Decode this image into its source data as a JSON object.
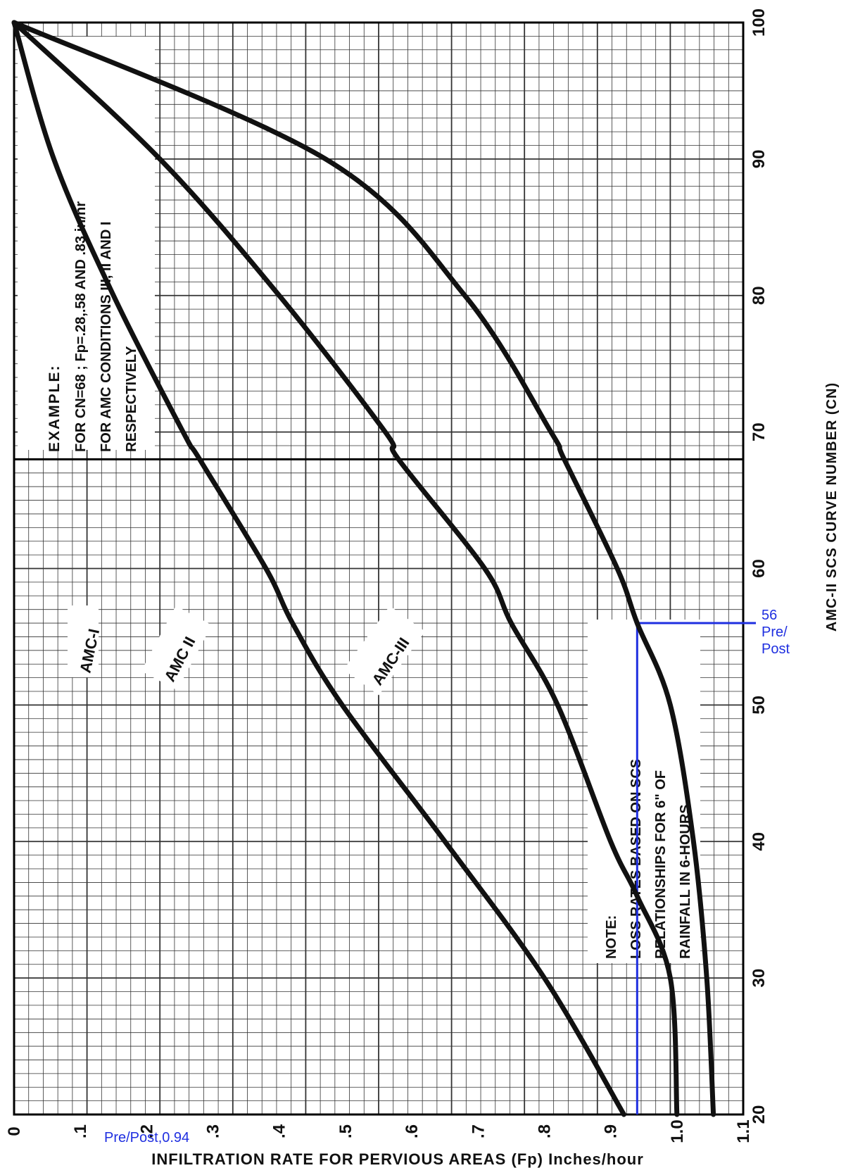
{
  "chart_data": {
    "type": "line",
    "title": "",
    "xlabel": "AMC-II SCS CURVE NUMBER (CN)",
    "ylabel": "INFILTRATION RATE FOR PERVIOUS AREAS (Fp) Inches/hour",
    "xlim": [
      20,
      100
    ],
    "ylim": [
      0,
      1.1
    ],
    "x_ticks": [
      20,
      30,
      40,
      50,
      60,
      70,
      80,
      90,
      100
    ],
    "x_tick_labels": [
      "20",
      "30",
      "40",
      "50",
      "60",
      "70",
      "80",
      "90",
      "100"
    ],
    "y_ticks": [
      0,
      0.1,
      0.2,
      0.3,
      0.4,
      0.5,
      0.6,
      0.7,
      0.8,
      0.9,
      1.0,
      1.1
    ],
    "y_tick_labels": [
      "0",
      ".1",
      ".2",
      ".3",
      ".4",
      ".5",
      ".6",
      ".7",
      ".8",
      ".9",
      "1.0",
      "1.1"
    ],
    "grid": true,
    "series": [
      {
        "name": "AMC-I",
        "x": [
          20,
          30,
          40,
          50,
          56,
          60,
          68,
          70,
          80,
          90,
          100
        ],
        "y": [
          1.055,
          1.045,
          1.025,
          0.99,
          0.94,
          0.91,
          0.83,
          0.81,
          0.68,
          0.47,
          0
        ]
      },
      {
        "name": "AMC II",
        "x": [
          20,
          30,
          36,
          40,
          50,
          56,
          60,
          68,
          70,
          80,
          90,
          100
        ],
        "y": [
          1.0,
          0.99,
          0.94,
          0.9,
          0.82,
          0.75,
          0.71,
          0.58,
          0.56,
          0.4,
          0.22,
          0
        ]
      },
      {
        "name": "AMC-III",
        "x": [
          20,
          30,
          40,
          50,
          56,
          60,
          68,
          70,
          80,
          90,
          100
        ],
        "y": [
          0.92,
          0.8,
          0.65,
          0.495,
          0.42,
          0.38,
          0.28,
          0.255,
          0.15,
          0.06,
          0
        ]
      }
    ],
    "annotations": {
      "example": [
        "EXAMPLE:",
        "FOR CN=68 ; Fp=.28,.58 AND .83 in/hr",
        "FOR AMC CONDITIONS III, II AND I",
        "RESPECTIVELY"
      ],
      "note": [
        "NOTE:",
        "LOSS RATES BASED ON SCS",
        "RELATIONSHIPS FOR 6\" OF",
        "RAINFALL IN 6-HOURS"
      ],
      "guide_cn": 56,
      "guide_fp": 0.94,
      "guide_cn_label": [
        "56",
        "Pre/",
        "Post"
      ],
      "guide_fp_label": "Pre/Post,0.94",
      "guide_color": "#1f2fe0"
    },
    "legend": "none"
  },
  "colors": {
    "curve": "#111111",
    "grid": "#333333",
    "guide": "#1f2fe0"
  }
}
